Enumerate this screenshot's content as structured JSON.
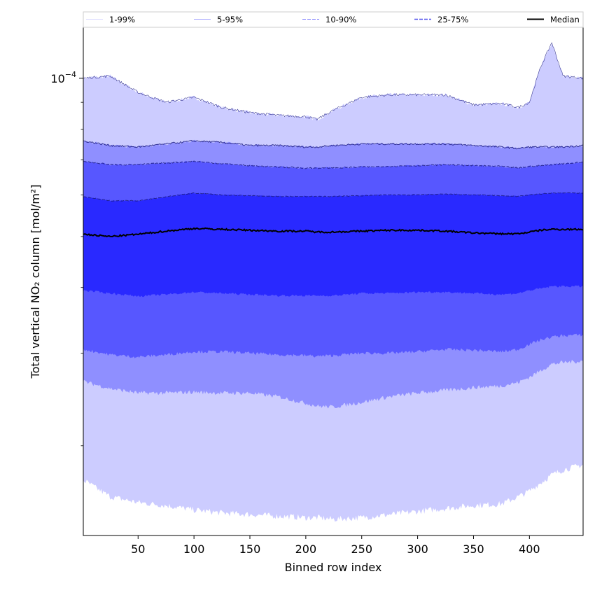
{
  "chart_data": {
    "type": "area",
    "xlabel": "Binned row index",
    "ylabel": "Total vertical NO₂ column [mol/m²]",
    "y_scale": "log",
    "xlim": [
      1,
      448
    ],
    "ylim": [
      1.35e-05,
      0.000125
    ],
    "x_ticks": [
      50,
      100,
      150,
      200,
      250,
      300,
      350,
      400
    ],
    "y_major_tick": {
      "value": 0.0001,
      "label_base": "10",
      "label_exp": "−4"
    },
    "y_minor_ticks": [
      2e-05,
      3e-05,
      4e-05,
      5e-05,
      6e-05,
      7e-05,
      8e-05,
      9e-05
    ],
    "grid": false,
    "legend_position": "top, spanning the plot width",
    "x": [
      1,
      25,
      50,
      75,
      100,
      125,
      150,
      175,
      200,
      210,
      225,
      250,
      275,
      300,
      325,
      350,
      375,
      390,
      400,
      410,
      420,
      430,
      448
    ],
    "series": [
      {
        "name": "1-99%",
        "color": "#ccccff",
        "lower": [
          1.72e-05,
          1.6e-05,
          1.56e-05,
          1.54e-05,
          1.51e-05,
          1.49e-05,
          1.48e-05,
          1.47e-05,
          1.46e-05,
          1.46e-05,
          1.45e-05,
          1.46e-05,
          1.48e-05,
          1.5e-05,
          1.52e-05,
          1.54e-05,
          1.55e-05,
          1.6e-05,
          1.64e-05,
          1.7e-05,
          1.76e-05,
          1.8e-05,
          1.84e-05
        ],
        "upper": [
          0.0001,
          0.000101,
          9.4e-05,
          9e-05,
          9.2e-05,
          8.8e-05,
          8.6e-05,
          8.5e-05,
          8.45e-05,
          8.35e-05,
          8.7e-05,
          9.2e-05,
          9.3e-05,
          9.3e-05,
          9.3e-05,
          8.9e-05,
          8.95e-05,
          8.8e-05,
          9e-05,
          0.000105,
          0.000117,
          0.000101,
          0.0001
        ]
      },
      {
        "name": "5-95%",
        "color": "#8f8fff",
        "lower": [
          2.65e-05,
          2.57e-05,
          2.52e-05,
          2.52e-05,
          2.53e-05,
          2.52e-05,
          2.52e-05,
          2.48e-05,
          2.41e-05,
          2.38e-05,
          2.37e-05,
          2.42e-05,
          2.48e-05,
          2.52e-05,
          2.55e-05,
          2.58e-05,
          2.6e-05,
          2.64e-05,
          2.7e-05,
          2.78e-05,
          2.86e-05,
          2.88e-05,
          2.9e-05
        ],
        "upper": [
          7.6e-05,
          7.45e-05,
          7.4e-05,
          7.5e-05,
          7.6e-05,
          7.55e-05,
          7.45e-05,
          7.45e-05,
          7.4e-05,
          7.4e-05,
          7.45e-05,
          7.5e-05,
          7.5e-05,
          7.5e-05,
          7.5e-05,
          7.45e-05,
          7.4e-05,
          7.35e-05,
          7.4e-05,
          7.4e-05,
          7.4e-05,
          7.4e-05,
          7.45e-05
        ]
      },
      {
        "name": "10-90%",
        "color": "#5757ff",
        "lower": [
          3.05e-05,
          2.98e-05,
          2.95e-05,
          2.98e-05,
          3.02e-05,
          3.02e-05,
          3e-05,
          2.98e-05,
          2.97e-05,
          2.96e-05,
          2.97e-05,
          3e-05,
          3e-05,
          3.02e-05,
          3.05e-05,
          3.04e-05,
          3.02e-05,
          3.05e-05,
          3.12e-05,
          3.18e-05,
          3.22e-05,
          3.24e-05,
          3.25e-05
        ],
        "upper": [
          6.95e-05,
          6.85e-05,
          6.85e-05,
          6.9e-05,
          6.95e-05,
          6.88e-05,
          6.82e-05,
          6.78e-05,
          6.75e-05,
          6.75e-05,
          6.75e-05,
          6.78e-05,
          6.8e-05,
          6.82e-05,
          6.85e-05,
          6.82e-05,
          6.8e-05,
          6.75e-05,
          6.8e-05,
          6.82e-05,
          6.85e-05,
          6.88e-05,
          6.92e-05
        ]
      },
      {
        "name": "25-75%",
        "color": "#2929ff",
        "lower": [
          3.95e-05,
          3.9e-05,
          3.85e-05,
          3.88e-05,
          3.92e-05,
          3.9e-05,
          3.88e-05,
          3.86e-05,
          3.86e-05,
          3.86e-05,
          3.86e-05,
          3.9e-05,
          3.9e-05,
          3.92e-05,
          3.92e-05,
          3.9e-05,
          3.88e-05,
          3.9e-05,
          3.95e-05,
          3.98e-05,
          4.02e-05,
          4.02e-05,
          4.02e-05
        ],
        "upper": [
          5.95e-05,
          5.85e-05,
          5.85e-05,
          5.95e-05,
          6.05e-05,
          6e-05,
          5.98e-05,
          5.96e-05,
          5.96e-05,
          5.96e-05,
          5.96e-05,
          5.98e-05,
          6e-05,
          6e-05,
          6.02e-05,
          6e-05,
          5.98e-05,
          5.96e-05,
          6e-05,
          6.02e-05,
          6.05e-05,
          6.05e-05,
          6.05e-05
        ]
      }
    ],
    "median": {
      "name": "Median",
      "color": "#000000",
      "values": [
        5.05e-05,
        5e-05,
        5.05e-05,
        5.12e-05,
        5.18e-05,
        5.16e-05,
        5.14e-05,
        5.12e-05,
        5.12e-05,
        5.1e-05,
        5.1e-05,
        5.12e-05,
        5.14e-05,
        5.14e-05,
        5.12e-05,
        5.08e-05,
        5.06e-05,
        5.06e-05,
        5.1e-05,
        5.14e-05,
        5.16e-05,
        5.16e-05,
        5.16e-05
      ]
    },
    "legend": [
      {
        "label": "1-99%",
        "color": "#dadaff",
        "style": "solid"
      },
      {
        "label": "5-95%",
        "color": "#a8a8ff",
        "style": "solid"
      },
      {
        "label": "10-90%",
        "color": "#8080ff",
        "style": "dashed"
      },
      {
        "label": "25-75%",
        "color": "#5050ee",
        "style": "dashed"
      },
      {
        "label": "Median",
        "color": "#000000",
        "style": "solid"
      }
    ]
  }
}
